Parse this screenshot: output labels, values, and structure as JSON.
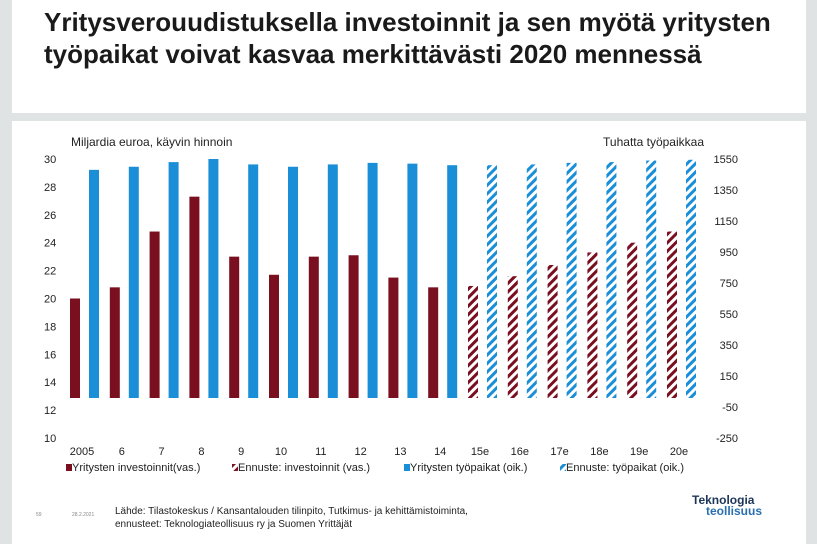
{
  "title": "Yritysverouudistuksella investoinnit ja sen myötä yritysten työpaikat voivat kasvaa merkittävästi 2020 mennessä",
  "colors": {
    "investments": "#7a0f1f",
    "jobs": "#1a8fd8",
    "background": "#dfe3e3"
  },
  "chart_data": {
    "type": "bar",
    "left_axis_title": "Miljardia euroa, käyvin hinnoin",
    "right_axis_title": "Tuhatta työpaikkaa",
    "categories": [
      "2005",
      "6",
      "7",
      "8",
      "9",
      "10",
      "11",
      "12",
      "13",
      "14",
      "15e",
      "16e",
      "17e",
      "18e",
      "19e",
      "20e"
    ],
    "left_ylim": [
      10,
      30
    ],
    "left_ticks": [
      30,
      28,
      26,
      24,
      22,
      20,
      18,
      16,
      14,
      12,
      10
    ],
    "right_ylim": [
      -250,
      1550
    ],
    "right_ticks": [
      1550,
      1350,
      1150,
      950,
      750,
      550,
      350,
      150,
      -50,
      -250
    ],
    "series": [
      {
        "name": "Yritysten investoinnit(vas.)",
        "axis": "left",
        "color": "#7a0f1f",
        "values": [
          20.0,
          20.8,
          24.8,
          27.3,
          23.0,
          21.7,
          23.0,
          23.1,
          21.5,
          20.8,
          null,
          null,
          null,
          null,
          null,
          null
        ]
      },
      {
        "name": "Ennuste: investoinnit (vas.)",
        "axis": "left",
        "color": "#7a0f1f",
        "pattern": "hatched",
        "values": [
          null,
          null,
          null,
          null,
          null,
          null,
          null,
          null,
          null,
          null,
          20.9,
          21.6,
          22.4,
          23.3,
          24.0,
          24.8
        ]
      },
      {
        "name": "Yritysten työpaikat (oik.)",
        "axis": "right",
        "color": "#1a8fd8",
        "values": [
          1480,
          1500,
          1530,
          1550,
          1515,
          1500,
          1515,
          1525,
          1520,
          1510,
          null,
          null,
          null,
          null,
          null,
          null
        ]
      },
      {
        "name": "Ennuste: työpaikat (oik.)",
        "axis": "right",
        "color": "#1a8fd8",
        "pattern": "hatched",
        "values": [
          null,
          null,
          null,
          null,
          null,
          null,
          null,
          null,
          null,
          null,
          1510,
          1515,
          1525,
          1530,
          1540,
          1545
        ]
      }
    ],
    "legend_position": "bottom"
  },
  "footer": {
    "page_number": "59",
    "date": "28.2.2021",
    "source_line1": "Lähde: Tilastokeskus / Kansantalouden tilinpito, Tutkimus- ja kehittämistoiminta,",
    "source_line2": "ennusteet: Teknologiateollisuus ry ja Suomen Yrittäjät",
    "logo_line1": "Teknologia",
    "logo_line2": "teollisuus"
  }
}
